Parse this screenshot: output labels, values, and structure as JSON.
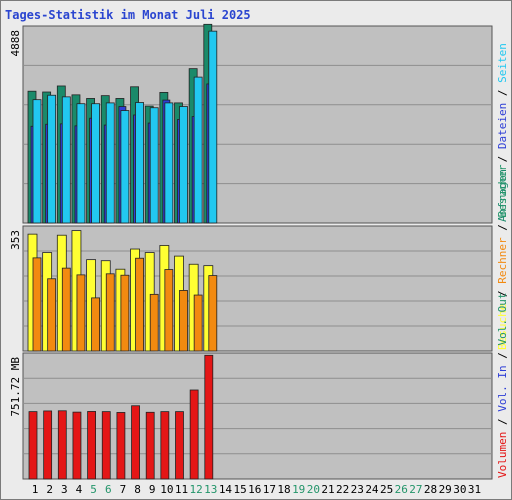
{
  "title": "Tages-Statistik im Monat Juli 2025",
  "colors": {
    "plot_bg": "#c0c0c0",
    "grid": "#8e8e8e",
    "anfragen": "#1a8a6a",
    "seiten": "#2e3ed6",
    "dateien": "#22c8f0",
    "besuche": "#ffff33",
    "rechner": "#f28a10",
    "volumen": "#e41616",
    "weekend_label": "#23956a",
    "day_label": "#000000"
  },
  "chart_data": [
    {
      "type": "bar",
      "y_max_label": "4888",
      "ylim": [
        0,
        4888
      ],
      "x": [
        1,
        2,
        3,
        4,
        5,
        6,
        7,
        8,
        9,
        10,
        11,
        12,
        13
      ],
      "series": [
        {
          "name": "Anfragen",
          "values": [
            3270,
            3250,
            3400,
            3180,
            3090,
            3160,
            3090,
            3380,
            2900,
            3240,
            2980,
            3830,
            4930
          ]
        },
        {
          "name": "Seiten",
          "values": [
            2400,
            2450,
            2460,
            2410,
            2600,
            2430,
            2890,
            2680,
            2480,
            3050,
            2570,
            2640,
            3450
          ]
        },
        {
          "name": "Dateien",
          "values": [
            3060,
            3170,
            3130,
            2960,
            2960,
            2980,
            2790,
            2990,
            2860,
            2980,
            2890,
            3620,
            4760
          ]
        }
      ],
      "legend": [
        {
          "text": "Anfragen",
          "color": "#1a8a6a"
        },
        {
          "text": "Dateien",
          "color": "#2e3ed6"
        },
        {
          "text": "Seiten",
          "color": "#22c8f0"
        }
      ],
      "grid": true
    },
    {
      "type": "bar",
      "y_max_label": "353",
      "ylim": [
        0,
        353
      ],
      "x": [
        1,
        2,
        3,
        4,
        5,
        6,
        7,
        8,
        9,
        10,
        11,
        12,
        13
      ],
      "series": [
        {
          "name": "Besuche",
          "values": [
            330,
            278,
            327,
            340,
            258,
            255,
            231,
            288,
            278,
            298,
            268,
            245,
            241
          ]
        },
        {
          "name": "Rechner",
          "values": [
            263,
            204,
            234,
            215,
            150,
            218,
            214,
            262,
            160,
            230,
            171,
            158,
            213
          ]
        }
      ],
      "legend": [
        {
          "text": "Besuche",
          "color": "#ffff33"
        },
        {
          "text": "Rechner",
          "color": "#f28a10"
        },
        {
          "text": "Besucher",
          "color": "#23956a"
        }
      ],
      "grid": true
    },
    {
      "type": "bar",
      "y_max_label": "751.72 MB",
      "ylim": [
        0,
        751.72
      ],
      "x": [
        1,
        2,
        3,
        4,
        5,
        6,
        7,
        8,
        9,
        10,
        11,
        12,
        13
      ],
      "series": [
        {
          "name": "Volumen",
          "values": [
            402,
            406,
            407,
            399,
            403,
            402,
            397,
            437,
            398,
            402,
            402,
            531,
            738
          ]
        }
      ],
      "legend": [
        {
          "text": "Volumen",
          "color": "#e41616"
        },
        {
          "text": "Vol. In",
          "color": "#2e3ed6"
        },
        {
          "text": "Vol. Out",
          "color": "#23956a"
        }
      ],
      "grid": true
    }
  ],
  "x_labels": [
    "1",
    "2",
    "3",
    "4",
    "5",
    "6",
    "7",
    "8",
    "9",
    "10",
    "11",
    "12",
    "13",
    "14",
    "15",
    "16",
    "17",
    "18",
    "19",
    "20",
    "21",
    "22",
    "23",
    "24",
    "25",
    "26",
    "27",
    "28",
    "29",
    "30",
    "31"
  ],
  "weekend_days": [
    5,
    6,
    12,
    13,
    19,
    20,
    26,
    27
  ]
}
